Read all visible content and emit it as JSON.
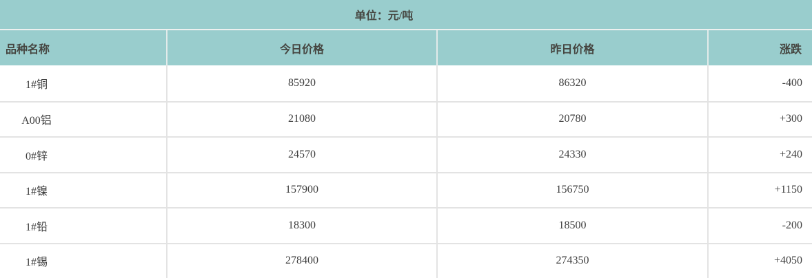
{
  "unit_bar": {
    "label": "单位：元/吨"
  },
  "table": {
    "columns": {
      "name": "品种名称",
      "today": "今日价格",
      "yesterday": "昨日价格",
      "change": "涨跌"
    },
    "rows": [
      {
        "name": "1#铜",
        "today": "85920",
        "yesterday": "86320",
        "change": "-400"
      },
      {
        "name": "A00铝",
        "today": "21080",
        "yesterday": "20780",
        "change": "+300"
      },
      {
        "name": "0#锌",
        "today": "24570",
        "yesterday": "24330",
        "change": "+240"
      },
      {
        "name": "1#镍",
        "today": "157900",
        "yesterday": "156750",
        "change": "+1150"
      },
      {
        "name": "1#铅",
        "today": "18300",
        "yesterday": "18500",
        "change": "-200"
      },
      {
        "name": "1#锡",
        "today": "278400",
        "yesterday": "274350",
        "change": "+4050"
      }
    ]
  },
  "colors": {
    "header_bg": "#99cdcd",
    "row_bg": "#ffffff",
    "border": "#e3e3e3",
    "header_text": "#454540",
    "data_text": "#3d3d3d"
  }
}
